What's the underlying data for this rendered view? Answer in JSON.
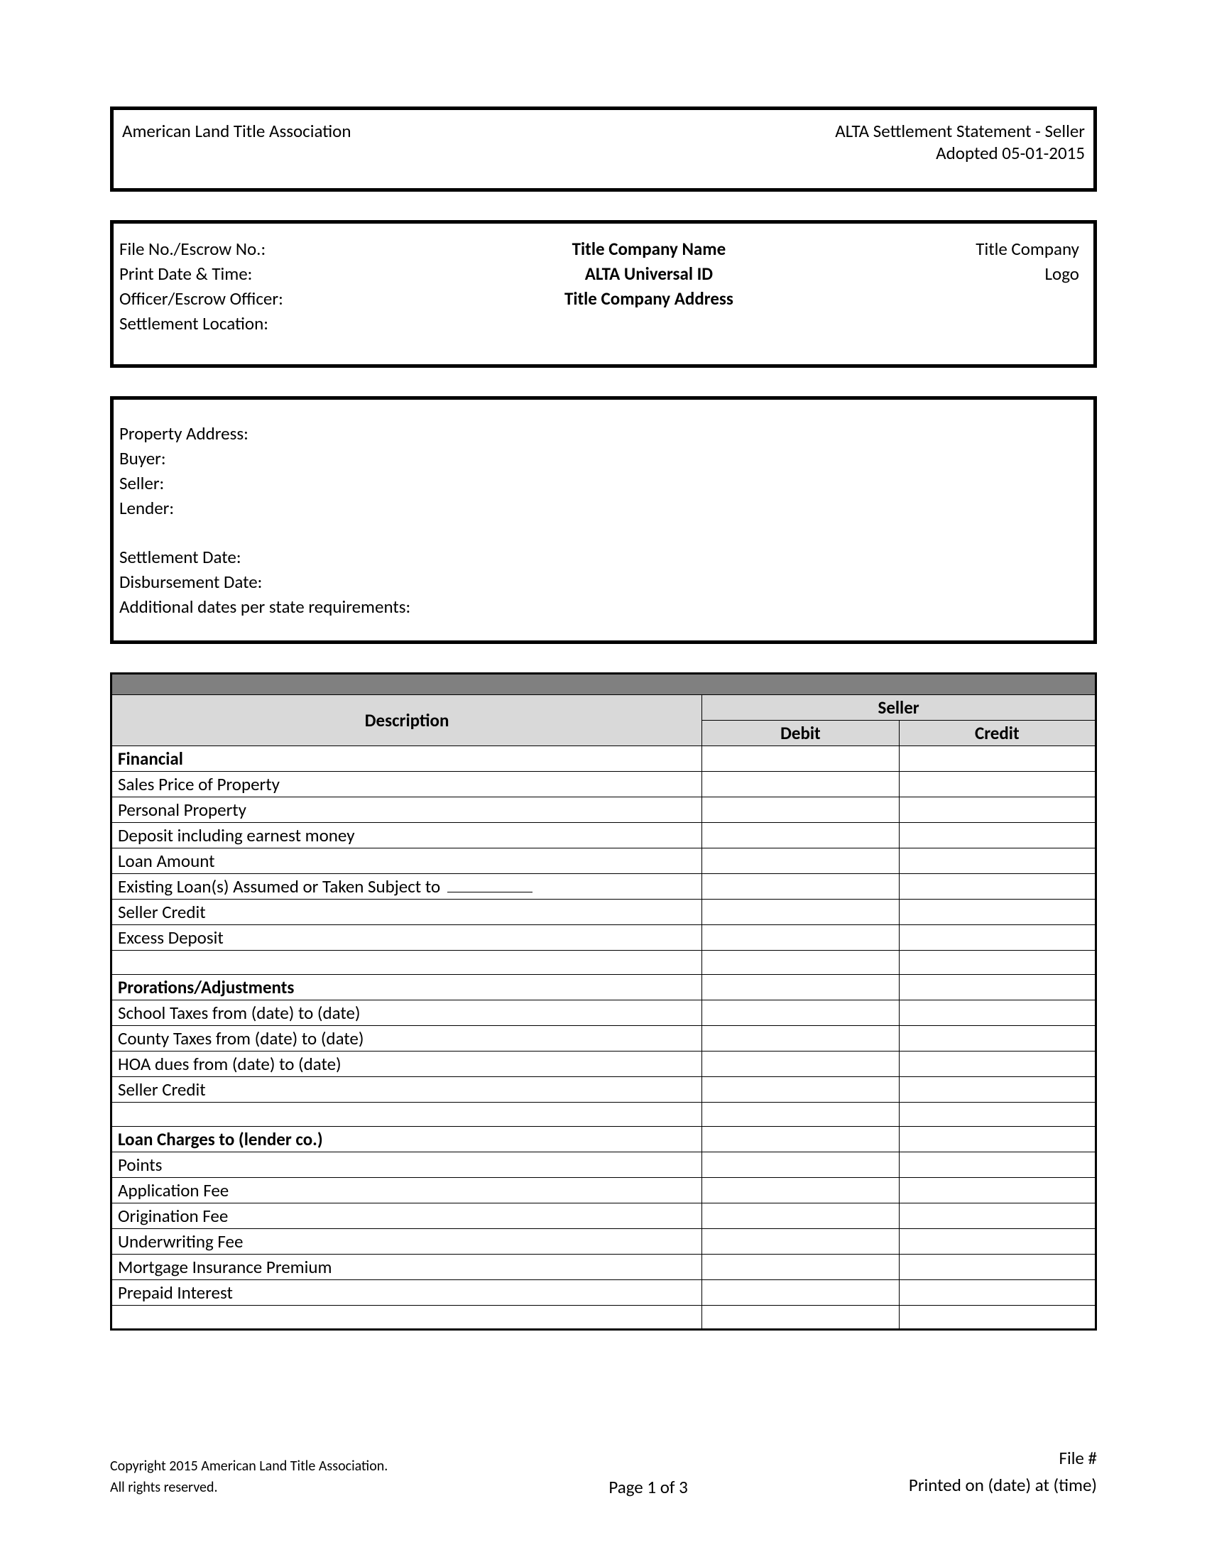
{
  "header": {
    "org": "American Land Title Association",
    "title": "ALTA Settlement Statement - Seller",
    "adopted": "Adopted 05-01-2015"
  },
  "info": {
    "file_no_label": "File No./Escrow No.:",
    "print_date_label": "Print Date & Time:",
    "officer_label": "Officer/Escrow Officer:",
    "location_label": "Settlement Location:",
    "company_name": "Title Company Name",
    "universal_id": "ALTA Universal ID",
    "company_address": "Title Company Address",
    "logo_line1": "Title Company",
    "logo_line2": "Logo"
  },
  "property": {
    "address_label": "Property Address:",
    "buyer_label": "Buyer:",
    "seller_label": "Seller:",
    "lender_label": "Lender:",
    "settlement_date_label": "Settlement Date:",
    "disbursement_date_label": "Disbursement Date:",
    "additional_dates_label": "Additional dates per state requirements:"
  },
  "table": {
    "description_header": "Description",
    "seller_header": "Seller",
    "debit_header": "Debit",
    "credit_header": "Credit",
    "sections": [
      {
        "heading": "Financial",
        "rows": [
          "Sales Price of Property",
          "Personal Property",
          "Deposit including earnest money",
          "Loan Amount",
          "Existing Loan(s) Assumed or Taken Subject to",
          "Seller Credit",
          "Excess Deposit"
        ],
        "has_blank_line_row_index": 4
      },
      {
        "heading": "Prorations/Adjustments",
        "rows": [
          "School Taxes from (date) to (date)",
          "County Taxes from (date) to (date)",
          "HOA dues from (date) to (date)",
          "Seller Credit"
        ]
      },
      {
        "heading": "Loan Charges to (lender co.)",
        "rows": [
          "Points",
          "Application Fee",
          "Origination Fee",
          "Underwriting Fee",
          "Mortgage Insurance Premium",
          "Prepaid Interest"
        ]
      }
    ]
  },
  "footer": {
    "copyright_line1": "Copyright 2015 American Land Title Association.",
    "copyright_line2": "All rights reserved.",
    "page": "Page 1 of 3",
    "file_label": "File #",
    "printed": "Printed on (date) at (time)"
  }
}
